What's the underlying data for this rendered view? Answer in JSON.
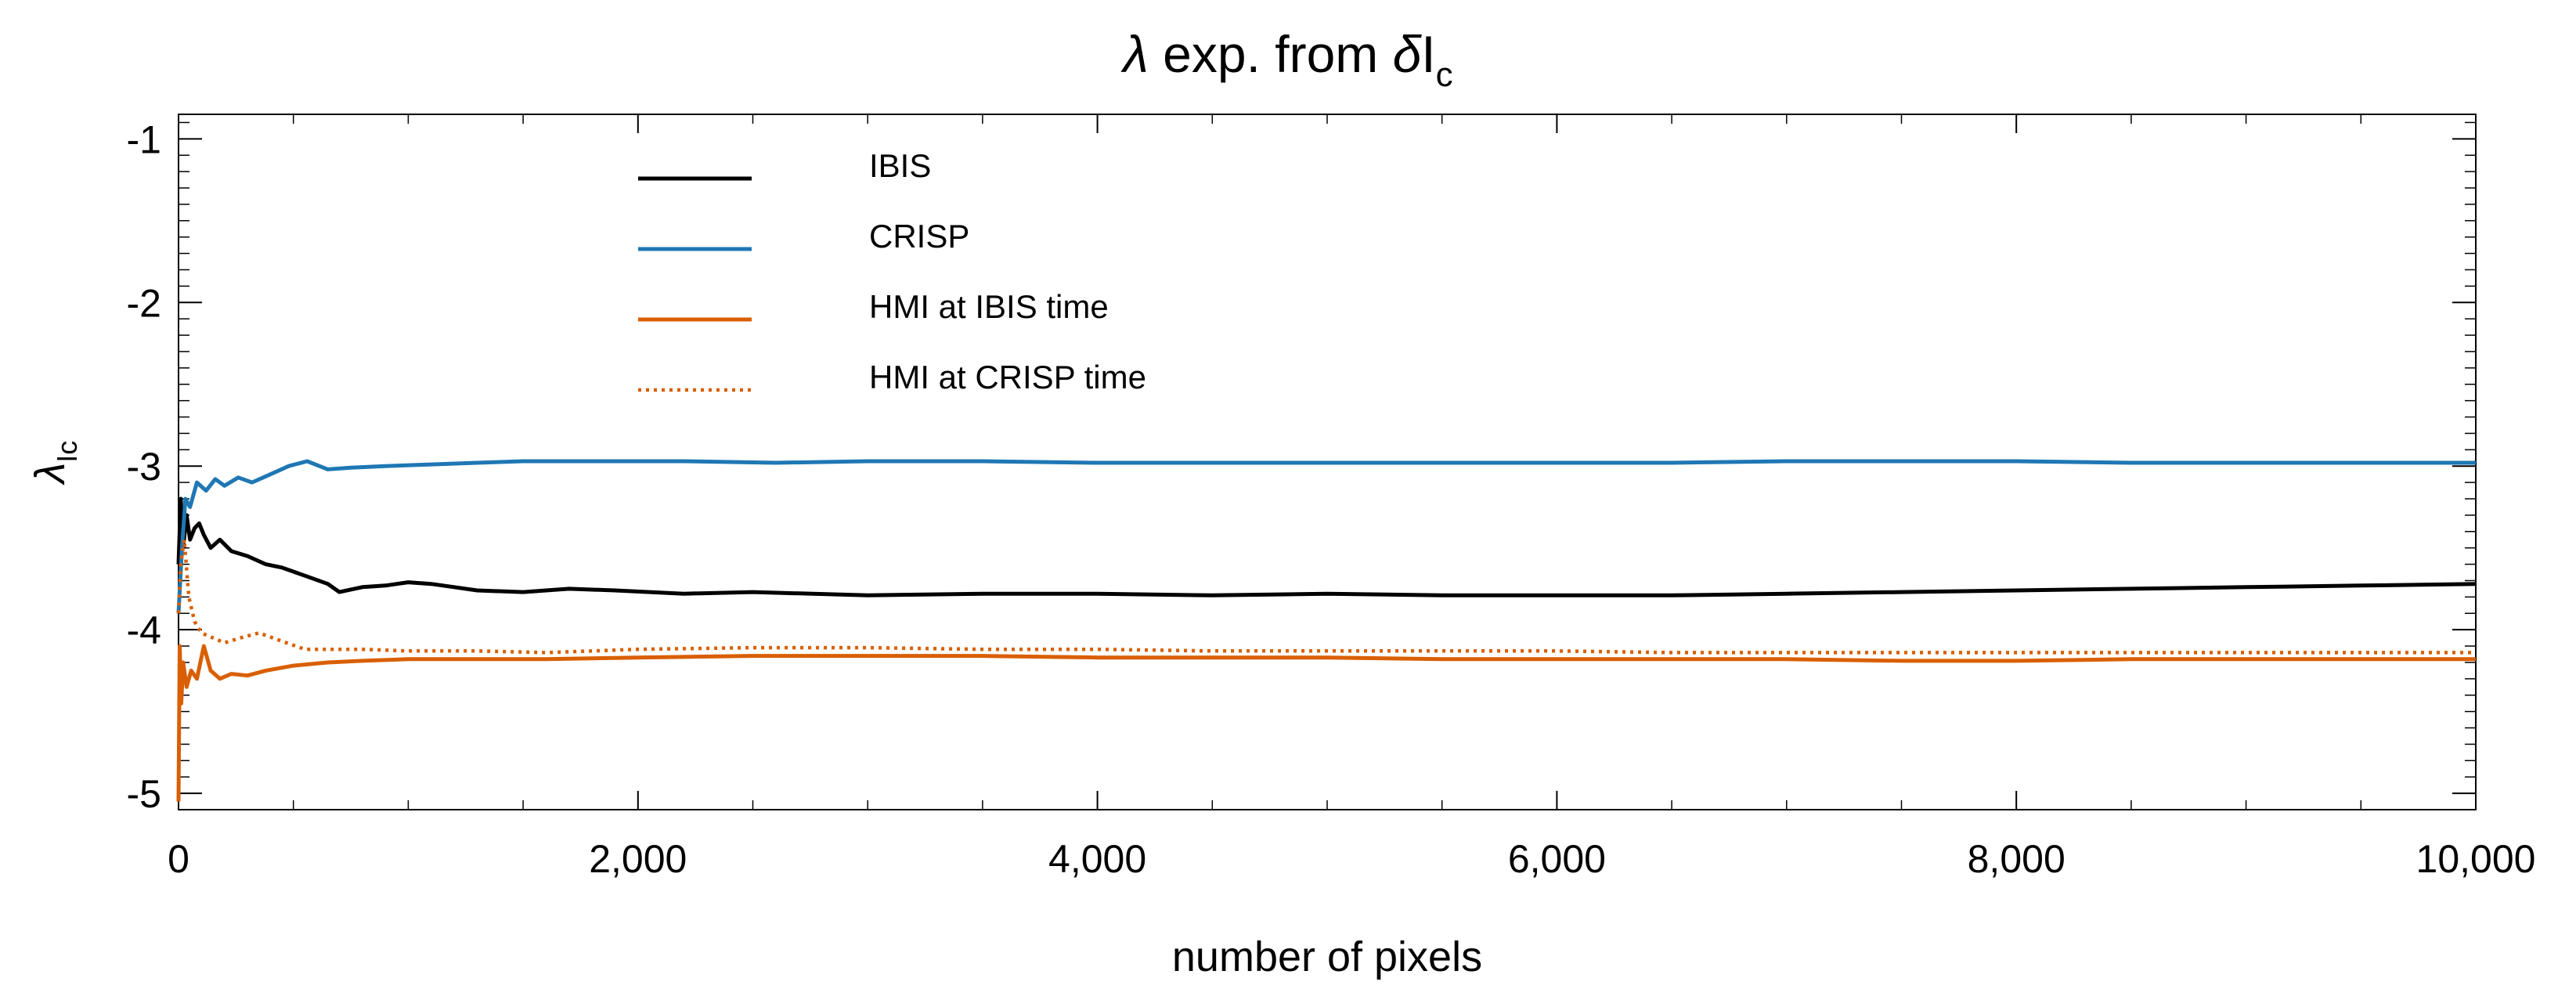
{
  "chart_data": {
    "type": "line",
    "title_parts": [
      "λ",
      " exp. from ",
      "δ",
      "I",
      "c"
    ],
    "xlabel": "number of pixels",
    "ylabel_parts": [
      "λ",
      "Ic"
    ],
    "xlim": [
      0,
      10000
    ],
    "ylim": [
      -5.1,
      -0.85
    ],
    "x_ticks": [
      0,
      2000,
      4000,
      6000,
      8000,
      10000
    ],
    "x_tick_labels": [
      "0",
      "2,000",
      "4,000",
      "6,000",
      "8,000",
      "10,000"
    ],
    "y_ticks": [
      -5,
      -4,
      -3,
      -2,
      -1
    ],
    "y_tick_labels": [
      "-5",
      "-4",
      "-3",
      "-2",
      "-1"
    ],
    "grid": false,
    "legend_position": "top-left",
    "series": [
      {
        "name": "IBIS",
        "color": "#000000",
        "dash": "solid",
        "x": [
          0,
          10,
          20,
          35,
          50,
          70,
          90,
          110,
          140,
          180,
          230,
          300,
          380,
          450,
          550,
          650,
          700,
          800,
          900,
          1000,
          1100,
          1200,
          1300,
          1500,
          1700,
          1900,
          2200,
          2500,
          3000,
          3500,
          4000,
          4500,
          5000,
          5500,
          6000,
          6500,
          7000,
          7500,
          8000,
          8500,
          9000,
          9500,
          10000
        ],
        "y": [
          -3.6,
          -3.2,
          -3.5,
          -3.3,
          -3.45,
          -3.38,
          -3.35,
          -3.42,
          -3.5,
          -3.45,
          -3.52,
          -3.55,
          -3.6,
          -3.62,
          -3.67,
          -3.72,
          -3.77,
          -3.74,
          -3.73,
          -3.71,
          -3.72,
          -3.74,
          -3.76,
          -3.77,
          -3.75,
          -3.76,
          -3.78,
          -3.77,
          -3.79,
          -3.78,
          -3.78,
          -3.79,
          -3.78,
          -3.79,
          -3.79,
          -3.79,
          -3.78,
          -3.77,
          -3.76,
          -3.75,
          -3.74,
          -3.73,
          -3.72
        ]
      },
      {
        "name": "CRISP",
        "color": "#1f77b4",
        "dash": "solid",
        "x": [
          0,
          15,
          30,
          50,
          80,
          120,
          160,
          200,
          260,
          320,
          400,
          480,
          560,
          650,
          750,
          900,
          1100,
          1300,
          1500,
          1800,
          2200,
          2600,
          3000,
          3500,
          4000,
          4500,
          5000,
          5500,
          6000,
          6500,
          7000,
          7500,
          8000,
          8500,
          9000,
          9500,
          10000
        ],
        "y": [
          -3.9,
          -3.5,
          -3.2,
          -3.25,
          -3.1,
          -3.15,
          -3.08,
          -3.12,
          -3.07,
          -3.1,
          -3.05,
          -3.0,
          -2.97,
          -3.02,
          -3.01,
          -3.0,
          -2.99,
          -2.98,
          -2.97,
          -2.97,
          -2.97,
          -2.98,
          -2.97,
          -2.97,
          -2.98,
          -2.98,
          -2.98,
          -2.98,
          -2.98,
          -2.98,
          -2.97,
          -2.97,
          -2.97,
          -2.98,
          -2.98,
          -2.98,
          -2.98
        ]
      },
      {
        "name": "HMI at IBIS time",
        "color": "#d95f02",
        "dash": "solid",
        "x": [
          0,
          5,
          12,
          20,
          35,
          55,
          80,
          110,
          140,
          180,
          230,
          300,
          380,
          500,
          650,
          800,
          1000,
          1300,
          1600,
          2000,
          2500,
          3000,
          3500,
          4000,
          4500,
          5000,
          5500,
          6000,
          6500,
          7000,
          7500,
          8000,
          8500,
          9000,
          9500,
          10000
        ],
        "y": [
          -5.05,
          -4.1,
          -4.45,
          -4.2,
          -4.35,
          -4.25,
          -4.3,
          -4.1,
          -4.25,
          -4.3,
          -4.27,
          -4.28,
          -4.25,
          -4.22,
          -4.2,
          -4.19,
          -4.18,
          -4.18,
          -4.18,
          -4.17,
          -4.16,
          -4.16,
          -4.16,
          -4.17,
          -4.17,
          -4.17,
          -4.18,
          -4.18,
          -4.18,
          -4.18,
          -4.19,
          -4.19,
          -4.18,
          -4.18,
          -4.18,
          -4.18
        ]
      },
      {
        "name": "HMI at CRISP time",
        "color": "#d95f02",
        "dash": "dotted",
        "x": [
          0,
          10,
          25,
          45,
          70,
          100,
          150,
          200,
          270,
          350,
          450,
          550,
          650,
          800,
          1000,
          1300,
          1600,
          2000,
          2500,
          3000,
          3500,
          4000,
          4500,
          5000,
          5500,
          6000,
          6500,
          7000,
          7500,
          8000,
          8500,
          9000,
          9500,
          10000
        ],
        "y": [
          -3.9,
          -3.6,
          -3.45,
          -3.8,
          -3.95,
          -4.02,
          -4.05,
          -4.08,
          -4.05,
          -4.02,
          -4.07,
          -4.12,
          -4.12,
          -4.12,
          -4.13,
          -4.13,
          -4.14,
          -4.12,
          -4.11,
          -4.11,
          -4.12,
          -4.12,
          -4.13,
          -4.13,
          -4.13,
          -4.13,
          -4.14,
          -4.14,
          -4.14,
          -4.14,
          -4.14,
          -4.14,
          -4.14,
          -4.14
        ]
      }
    ]
  }
}
